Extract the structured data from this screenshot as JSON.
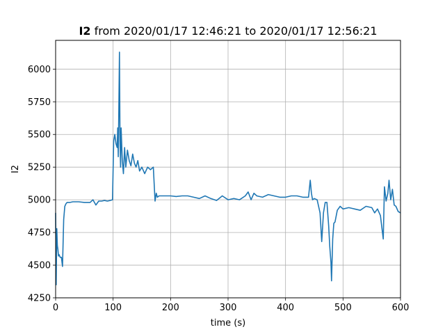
{
  "chart_data": {
    "type": "line",
    "title": {
      "bold": "I2",
      "rest": " from 2020/01/17 12:46:21 to 2020/01/17 12:56:21"
    },
    "xlabel": "time (s)",
    "ylabel": "I2",
    "xlim": [
      0,
      600
    ],
    "ylim": [
      4250,
      6220
    ],
    "xticks": [
      0,
      100,
      200,
      300,
      400,
      500,
      600
    ],
    "yticks": [
      4250,
      4500,
      4750,
      5000,
      5250,
      5500,
      5750,
      6000
    ],
    "grid": true,
    "series_color": "#1f77b4",
    "series": [
      {
        "x": [
          0,
          1,
          2,
          3,
          4,
          5,
          6,
          8,
          10,
          12,
          14,
          16,
          18,
          20,
          25,
          30,
          40,
          50,
          60,
          65,
          70,
          75,
          80,
          85,
          90,
          95,
          99,
          101,
          103,
          105,
          107,
          108,
          109,
          110,
          111,
          112,
          113,
          114,
          116,
          118,
          120,
          122,
          125,
          128,
          131,
          134,
          137,
          140,
          143,
          146,
          150,
          155,
          160,
          165,
          170,
          173,
          175,
          177,
          180,
          190,
          200,
          210,
          220,
          230,
          240,
          250,
          260,
          270,
          280,
          290,
          300,
          310,
          320,
          330,
          335,
          340,
          345,
          350,
          360,
          370,
          380,
          390,
          400,
          410,
          420,
          430,
          440,
          443,
          445,
          447,
          450,
          455,
          460,
          463,
          466,
          469,
          472,
          475,
          477,
          479,
          480,
          482,
          484,
          486,
          490,
          495,
          500,
          510,
          520,
          530,
          540,
          550,
          555,
          560,
          565,
          570,
          572,
          575,
          578,
          580,
          583,
          586,
          589,
          592,
          596,
          600
        ],
        "y": [
          4900,
          4350,
          4780,
          4650,
          4620,
          4570,
          4580,
          4560,
          4560,
          4490,
          4850,
          4950,
          4970,
          4980,
          4980,
          4985,
          4985,
          4980,
          4980,
          5000,
          4960,
          4990,
          4990,
          4995,
          4990,
          4995,
          5000,
          5450,
          5500,
          5430,
          5400,
          5550,
          5330,
          5700,
          6130,
          5450,
          5250,
          5550,
          5300,
          5200,
          5400,
          5250,
          5380,
          5300,
          5260,
          5350,
          5280,
          5250,
          5300,
          5220,
          5250,
          5200,
          5250,
          5230,
          5250,
          4990,
          5050,
          5020,
          5030,
          5030,
          5030,
          5025,
          5030,
          5030,
          5020,
          5010,
          5030,
          5010,
          4995,
          5030,
          5000,
          5010,
          5000,
          5030,
          5060,
          5000,
          5050,
          5030,
          5020,
          5040,
          5030,
          5020,
          5020,
          5030,
          5030,
          5020,
          5020,
          5150,
          5050,
          5000,
          5010,
          5000,
          4900,
          4680,
          4900,
          4980,
          4980,
          4800,
          4640,
          4520,
          4380,
          4700,
          4820,
          4830,
          4920,
          4950,
          4930,
          4940,
          4930,
          4920,
          4950,
          4940,
          4900,
          4930,
          4880,
          4700,
          5100,
          4990,
          5050,
          5150,
          5000,
          5080,
          4960,
          4950,
          4910,
          4900
        ]
      }
    ]
  }
}
